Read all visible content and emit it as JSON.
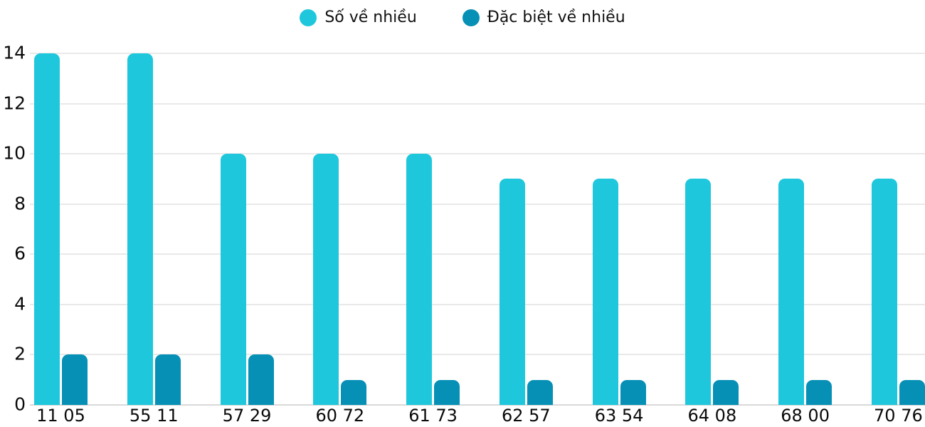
{
  "chart_data": {
    "type": "bar",
    "categories": [
      "11 05",
      "55 11",
      "57 29",
      "60 72",
      "61 73",
      "62 57",
      "63 54",
      "64 08",
      "68 00",
      "70 76"
    ],
    "series": [
      {
        "name": "Số về nhiều",
        "color": "#1EC7DC",
        "values": [
          14,
          14,
          10,
          10,
          10,
          9,
          9,
          9,
          9,
          9
        ]
      },
      {
        "name": "Đặc biệt về nhiều",
        "color": "#0690B5",
        "values": [
          2,
          2,
          2,
          1,
          1,
          1,
          1,
          1,
          1,
          1
        ]
      }
    ],
    "title": "",
    "xlabel": "",
    "ylabel": "",
    "ylim": [
      0,
      14
    ],
    "yticks": [
      0,
      2,
      4,
      6,
      8,
      10,
      12,
      14
    ],
    "grid": true,
    "legend_position": "top-center"
  },
  "colors": {
    "background": "#ffffff",
    "gridline": "#e9e9e9",
    "baseline": "#d9d9d9",
    "axis_text": "#0a0a0a"
  }
}
